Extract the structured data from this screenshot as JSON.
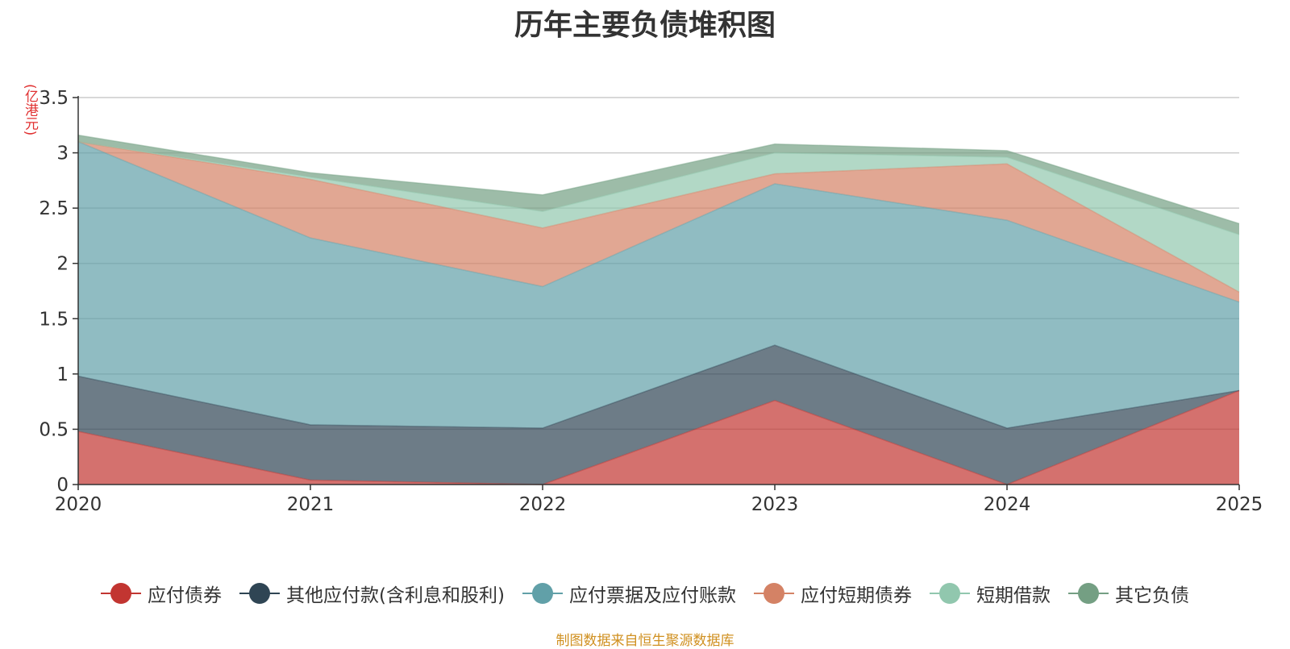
{
  "chart_data": {
    "type": "area",
    "stacked": true,
    "title": "历年主要负债堆积图",
    "ylabel": "(亿港元)",
    "xlabel": "",
    "ylim": [
      0,
      3.5
    ],
    "yticks": [
      "0",
      "0.5",
      "1",
      "1.5",
      "2",
      "2.5",
      "3",
      "3.5"
    ],
    "categories": [
      "2020",
      "2021",
      "2022",
      "2023",
      "2024",
      "2025"
    ],
    "series": [
      {
        "name": "应付债券",
        "color": "#c23531",
        "values": [
          0.48,
          0.04,
          0.0,
          0.76,
          0.0,
          0.85
        ]
      },
      {
        "name": "其他应付款(含利息和股利)",
        "color": "#2f4554",
        "values": [
          0.5,
          0.5,
          0.51,
          0.5,
          0.51,
          0.0
        ]
      },
      {
        "name": "应付票据及应付账款",
        "color": "#61a0a8",
        "values": [
          2.12,
          1.69,
          1.28,
          1.46,
          1.88,
          0.8
        ]
      },
      {
        "name": "应付短期债券",
        "color": "#d48265",
        "values": [
          0.0,
          0.53,
          0.53,
          0.09,
          0.51,
          0.09
        ]
      },
      {
        "name": "短期借款",
        "color": "#91c7ae",
        "values": [
          0.0,
          0.02,
          0.15,
          0.19,
          0.06,
          0.52
        ]
      },
      {
        "name": "其它负债",
        "color": "#749f83",
        "values": [
          0.06,
          0.04,
          0.15,
          0.08,
          0.06,
          0.1
        ]
      }
    ],
    "grid": true,
    "legend_position": "bottom"
  },
  "source_note": "制图数据来自恒生聚源数据库"
}
